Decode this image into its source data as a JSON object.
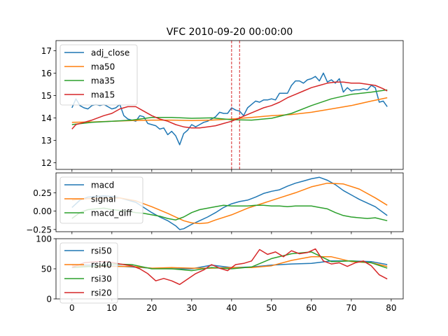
{
  "chart_data": {
    "title": "VFC 2010-09-20 00:00:00",
    "shared_x": {
      "ticks": [
        0,
        10,
        20,
        30,
        40,
        50,
        60,
        70,
        80
      ],
      "xlim": [
        -4,
        83
      ]
    },
    "panels": [
      {
        "type": "line",
        "ylim": [
          11.7,
          17.45
        ],
        "yticks": [
          12,
          13,
          14,
          15,
          16,
          17
        ],
        "vlines": [
          40,
          42
        ],
        "legend_position": "upper-left",
        "series": [
          {
            "name": "adj_close",
            "color": "#1f77b4",
            "x": [
              0,
              1,
              2,
              3,
              4,
              5,
              6,
              7,
              8,
              9,
              10,
              11,
              12,
              13,
              14,
              15,
              16,
              17,
              18,
              19,
              20,
              21,
              22,
              23,
              24,
              25,
              26,
              27,
              28,
              29,
              30,
              31,
              32,
              33,
              34,
              35,
              36,
              37,
              38,
              39,
              40,
              41,
              42,
              43,
              44,
              45,
              46,
              47,
              48,
              49,
              50,
              51,
              52,
              53,
              54,
              55,
              56,
              57,
              58,
              59,
              60,
              61,
              62,
              63,
              64,
              65,
              66,
              67,
              68,
              69,
              70,
              71,
              72,
              73,
              74,
              75,
              76,
              77,
              78,
              79
            ],
            "values": [
              14.45,
              14.85,
              14.55,
              14.45,
              14.4,
              14.55,
              14.6,
              14.55,
              14.6,
              14.5,
              14.4,
              14.45,
              14.6,
              14.1,
              13.95,
              13.9,
              13.85,
              14.1,
              14.05,
              13.75,
              13.7,
              13.65,
              13.5,
              13.55,
              13.25,
              13.4,
              13.2,
              12.8,
              13.3,
              13.45,
              13.7,
              13.6,
              13.7,
              13.8,
              13.85,
              13.95,
              14.05,
              14.25,
              14.2,
              14.2,
              14.45,
              14.35,
              14.3,
              14.1,
              14.45,
              14.6,
              14.75,
              14.7,
              14.8,
              14.8,
              14.85,
              14.8,
              15.1,
              15.1,
              15.1,
              15.45,
              15.65,
              15.65,
              15.55,
              15.7,
              15.75,
              15.85,
              15.65,
              16.0,
              15.6,
              15.7,
              15.55,
              15.75,
              15.15,
              15.35,
              15.2,
              15.25,
              15.25,
              15.3,
              15.25,
              15.45,
              15.35,
              14.7,
              14.75,
              14.5
            ]
          },
          {
            "name": "ma50",
            "color": "#ff7f0e",
            "x": [
              0,
              5,
              10,
              15,
              20,
              25,
              30,
              35,
              40,
              45,
              50,
              55,
              60,
              65,
              70,
              75,
              79
            ],
            "values": [
              13.8,
              13.82,
              13.85,
              13.88,
              13.9,
              13.9,
              13.88,
              13.9,
              13.95,
              14.02,
              14.1,
              14.15,
              14.25,
              14.4,
              14.55,
              14.75,
              14.9
            ]
          },
          {
            "name": "ma35",
            "color": "#2ca02c",
            "x": [
              0,
              5,
              10,
              15,
              20,
              25,
              30,
              35,
              40,
              45,
              50,
              55,
              60,
              65,
              70,
              75,
              79
            ],
            "values": [
              13.7,
              13.8,
              13.85,
              13.9,
              14.02,
              14.02,
              13.98,
              14.0,
              13.92,
              13.9,
              13.98,
              14.2,
              14.55,
              14.85,
              15.05,
              15.15,
              15.25
            ]
          },
          {
            "name": "ma15",
            "color": "#d62728",
            "x": [
              0,
              1,
              3,
              5,
              8,
              10,
              12,
              14,
              16,
              18,
              20,
              22,
              24,
              26,
              28,
              30,
              32,
              34,
              36,
              38,
              40,
              42,
              44,
              46,
              48,
              50,
              52,
              54,
              56,
              58,
              60,
              62,
              64,
              66,
              68,
              70,
              72,
              74,
              76,
              78,
              79
            ],
            "values": [
              13.5,
              13.7,
              13.8,
              13.9,
              14.1,
              14.2,
              14.4,
              14.5,
              14.5,
              14.3,
              14.1,
              13.95,
              13.85,
              13.7,
              13.6,
              13.55,
              13.55,
              13.6,
              13.65,
              13.75,
              13.85,
              14.0,
              14.15,
              14.3,
              14.45,
              14.55,
              14.7,
              14.9,
              15.05,
              15.2,
              15.35,
              15.45,
              15.55,
              15.6,
              15.6,
              15.55,
              15.55,
              15.5,
              15.45,
              15.3,
              15.2
            ]
          }
        ]
      },
      {
        "type": "line",
        "ylim": [
          -0.28,
          0.52
        ],
        "yticks": [
          -0.25,
          0.0,
          0.25
        ],
        "ytick_labels": [
          "−0.25",
          "0.00",
          "0.25"
        ],
        "legend_position": "upper-left",
        "series": [
          {
            "name": "macd",
            "color": "#1f77b4",
            "x": [
              0,
              2,
              4,
              6,
              8,
              10,
              12,
              14,
              16,
              18,
              20,
              22,
              24,
              26,
              27,
              28,
              30,
              32,
              34,
              36,
              38,
              40,
              42,
              44,
              46,
              48,
              50,
              52,
              54,
              56,
              58,
              60,
              62,
              64,
              66,
              68,
              70,
              72,
              74,
              76,
              79
            ],
            "values": [
              0.05,
              0.15,
              0.19,
              0.2,
              0.21,
              0.2,
              0.18,
              0.15,
              0.12,
              0.05,
              -0.02,
              -0.08,
              -0.13,
              -0.2,
              -0.25,
              -0.24,
              -0.18,
              -0.13,
              -0.08,
              -0.02,
              0.05,
              0.1,
              0.13,
              0.15,
              0.19,
              0.24,
              0.27,
              0.29,
              0.34,
              0.38,
              0.41,
              0.44,
              0.46,
              0.42,
              0.36,
              0.28,
              0.22,
              0.16,
              0.11,
              0.06,
              -0.06
            ]
          },
          {
            "name": "signal",
            "color": "#ff7f0e",
            "x": [
              0,
              4,
              8,
              12,
              16,
              20,
              24,
              28,
              30,
              32,
              34,
              36,
              40,
              44,
              48,
              52,
              56,
              60,
              64,
              68,
              72,
              76,
              79
            ],
            "values": [
              0.15,
              0.17,
              0.17,
              0.18,
              0.14,
              0.06,
              -0.03,
              -0.13,
              -0.16,
              -0.17,
              -0.16,
              -0.12,
              -0.05,
              0.04,
              0.11,
              0.18,
              0.25,
              0.33,
              0.38,
              0.37,
              0.3,
              0.18,
              0.08
            ]
          },
          {
            "name": "macd_diff",
            "color": "#2ca02c",
            "x": [
              0,
              2,
              4,
              6,
              8,
              10,
              12,
              14,
              16,
              18,
              20,
              22,
              24,
              26,
              28,
              30,
              32,
              34,
              36,
              38,
              40,
              42,
              44,
              46,
              48,
              50,
              52,
              54,
              56,
              58,
              60,
              62,
              64,
              66,
              68,
              70,
              72,
              74,
              76,
              79
            ],
            "values": [
              -0.1,
              -0.02,
              0.02,
              0.03,
              0.04,
              0.02,
              0.01,
              0.0,
              -0.02,
              -0.03,
              -0.05,
              -0.07,
              -0.1,
              -0.12,
              -0.08,
              -0.02,
              0.02,
              0.04,
              0.06,
              0.08,
              0.07,
              0.07,
              0.07,
              0.08,
              0.08,
              0.07,
              0.07,
              0.06,
              0.07,
              0.07,
              0.07,
              0.05,
              0.03,
              -0.02,
              -0.06,
              -0.08,
              -0.09,
              -0.1,
              -0.09,
              -0.13
            ]
          }
        ]
      },
      {
        "type": "line",
        "ylim": [
          0,
          100
        ],
        "yticks": [
          0,
          50,
          100
        ],
        "legend_position": "upper-left",
        "series": [
          {
            "name": "rsi50",
            "color": "#1f77b4",
            "x": [
              0,
              5,
              10,
              15,
              20,
              25,
              30,
              35,
              40,
              45,
              50,
              55,
              60,
              65,
              70,
              75,
              79
            ],
            "values": [
              57,
              56,
              55,
              53,
              51,
              50,
              50,
              56,
              52,
              53,
              56,
              58,
              59,
              63,
              63,
              62,
              57
            ]
          },
          {
            "name": "rsi40",
            "color": "#ff7f0e",
            "x": [
              0,
              5,
              10,
              15,
              20,
              25,
              30,
              35,
              40,
              45,
              50,
              55,
              60,
              65,
              70,
              75,
              79
            ],
            "values": [
              55,
              54,
              54,
              54,
              51,
              52,
              51,
              51,
              52,
              52,
              55,
              64,
              70,
              70,
              62,
              60,
              54
            ]
          },
          {
            "name": "rsi30",
            "color": "#2ca02c",
            "x": [
              0,
              5,
              10,
              15,
              20,
              25,
              30,
              35,
              40,
              45,
              50,
              55,
              60,
              65,
              70,
              75,
              79
            ],
            "values": [
              52,
              54,
              58,
              57,
              50,
              50,
              47,
              52,
              50,
              53,
              67,
              75,
              78,
              62,
              63,
              60,
              51
            ]
          },
          {
            "name": "rsi20",
            "color": "#d62728",
            "x": [
              0,
              3,
              6,
              9,
              12,
              15,
              17,
              19,
              21,
              23,
              25,
              27,
              29,
              31,
              33,
              35,
              37,
              39,
              41,
              43,
              45,
              47,
              49,
              51,
              53,
              55,
              57,
              59,
              61,
              63,
              65,
              67,
              69,
              71,
              73,
              75,
              77,
              79
            ],
            "values": [
              52,
              60,
              62,
              62,
              58,
              55,
              50,
              42,
              30,
              34,
              30,
              24,
              33,
              42,
              48,
              57,
              51,
              47,
              57,
              59,
              63,
              82,
              74,
              78,
              70,
              80,
              75,
              77,
              83,
              63,
              58,
              60,
              54,
              60,
              63,
              55,
              40,
              33
            ]
          }
        ]
      }
    ]
  }
}
